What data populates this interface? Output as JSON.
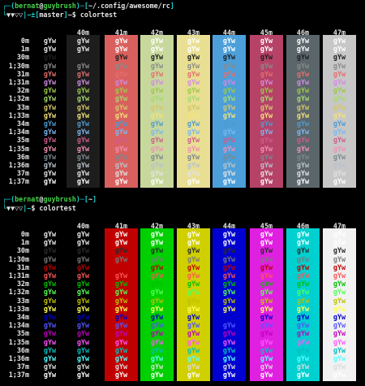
{
  "window": {
    "background": "#000000"
  },
  "palettes": {
    "solarized": {
      "fg": {
        "normal": [
          "#e4e4e4",
          "#e4e4e4",
          "#202020",
          "#8a8a8a",
          "#e56e6e",
          "#d28ce0",
          "#9cc84a",
          "#a7d96f",
          "#d6c66b",
          "#f2e27b",
          "#4f9bd0",
          "#7bb8ef",
          "#cf5c8b",
          "#f08fb5",
          "#7c8790",
          "#b8c3cc",
          "#e2e2e2",
          "#ffffff"
        ],
        "bg": [
          null,
          null,
          "#d9605e",
          "#c7d9a0",
          "#e9de8d",
          "#4a9ed9",
          "#b8426a",
          "#5f686c",
          "#c7c7c7"
        ]
      },
      "bg_shade": [
        "#000000",
        "#1d1d1d",
        "#d9605e",
        "#c8d89c",
        "#e8df93",
        "#4c9fd9",
        "#b64268",
        "#5b666b",
        "#c7c7c7"
      ]
    },
    "vga": {
      "fg": [
        "#e4e4e4",
        "#e4e4e4",
        "#2b2b2b",
        "#7a7a7a",
        "#c00000",
        "#ff5555",
        "#00c000",
        "#55ff55",
        "#c0c000",
        "#ffff55",
        "#0000c8",
        "#5555ff",
        "#c000c0",
        "#ff55ff",
        "#00c0c0",
        "#55ffff",
        "#dcdcdc",
        "#ffffff"
      ],
      "bg_shade": [
        "#000000",
        "#000000",
        "#c00000",
        "#00d000",
        "#d0d000",
        "#0000d0",
        "#e020e0",
        "#00d0d0",
        "#f2f2f2"
      ]
    }
  },
  "sections": [
    {
      "prompt": {
        "line1_parts": [
          {
            "text": "┌─(",
            "color": "#19d2d2"
          },
          {
            "text": "bernat",
            "color": "#45d24a"
          },
          {
            "text": "@",
            "color": "#e4e4e4"
          },
          {
            "text": "guybrush",
            "color": "#45d24a"
          },
          {
            "text": ")─[",
            "color": "#19d2d2"
          },
          {
            "text": "~/.config/awesome/rc",
            "color": "#e4e4e4"
          },
          {
            "text": "]",
            "color": "#19d2d2"
          }
        ],
        "line2_parts": [
          {
            "text": "└",
            "color": "#19d2d2"
          },
          {
            "text": "▼▼▽▽",
            "color": "#e4e4e4"
          },
          {
            "text": "|−±[",
            "color": "#19d2d2"
          },
          {
            "text": "master",
            "color": "#e4e4e4"
          },
          {
            "text": "]",
            "color": "#19d2d2"
          },
          {
            "text": "−$ colortest",
            "color": "#e4e4e4"
          }
        ]
      },
      "headers": [
        "40m",
        "41m",
        "42m",
        "43m",
        "44m",
        "45m",
        "46m",
        "47m"
      ],
      "row_labels": [
        "0m",
        "1m",
        "30m",
        "1;30m",
        "31m",
        "1;31m",
        "32m",
        "1;32m",
        "33m",
        "1;33m",
        "34m",
        "1;34m",
        "35m",
        "1;35m",
        "36m",
        "1;36m",
        "37m",
        "1;37m"
      ],
      "sample": "gYw"
    },
    {
      "prompt": {
        "line1_parts": [
          {
            "text": "┌─(",
            "color": "#19d2d2"
          },
          {
            "text": "bernat",
            "color": "#45d24a"
          },
          {
            "text": "@",
            "color": "#e4e4e4"
          },
          {
            "text": "guybrush",
            "color": "#45d24a"
          },
          {
            "text": ")─[",
            "color": "#19d2d2"
          },
          {
            "text": "~",
            "color": "#e4e4e4"
          },
          {
            "text": "]",
            "color": "#19d2d2"
          }
        ],
        "line2_parts": [
          {
            "text": "└",
            "color": "#19d2d2"
          },
          {
            "text": "▼▼▽▽",
            "color": "#e4e4e4"
          },
          {
            "text": "|−",
            "color": "#19d2d2"
          },
          {
            "text": "$ colortest",
            "color": "#e4e4e4"
          }
        ]
      },
      "headers": [
        "40m",
        "41m",
        "42m",
        "43m",
        "44m",
        "45m",
        "46m",
        "47m"
      ],
      "row_labels": [
        "0m",
        "1m",
        "30m",
        "1;30m",
        "31m",
        "1;31m",
        "32m",
        "1;32m",
        "33m",
        "1;33m",
        "34m",
        "1;34m",
        "35m",
        "1;35m",
        "36m",
        "1;36m",
        "37m",
        "1;37m"
      ],
      "sample": "gYw"
    }
  ]
}
